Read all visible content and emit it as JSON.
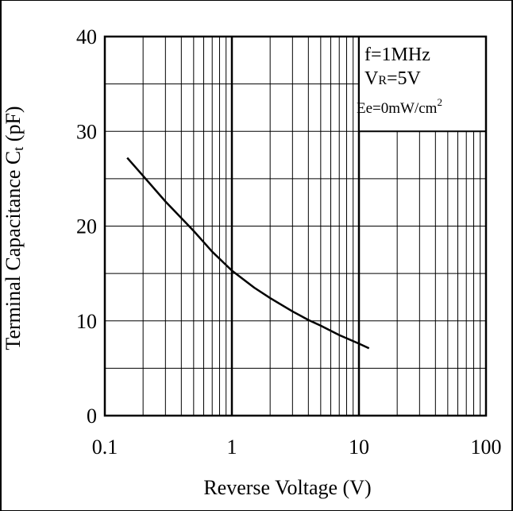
{
  "chart_data": {
    "type": "line",
    "xlabel": "Reverse Voltage (V)",
    "ylabel": "Terminal Capacitance C",
    "ylabel_sub": "t",
    "ylabel_unit": " (pF)",
    "x_scale": "log",
    "xlim": [
      0.1,
      100
    ],
    "ylim": [
      0,
      40
    ],
    "grid": true,
    "x_ticks": [
      0.1,
      1,
      10,
      100
    ],
    "x_tick_labels": [
      "0.1",
      "1",
      "10",
      "100"
    ],
    "y_ticks": [
      0,
      10,
      20,
      30,
      40
    ],
    "y_tick_labels": [
      "0",
      "10",
      "20",
      "30",
      "40"
    ],
    "annotations": {
      "freq": "f=1MHz",
      "freq_unit_z": "z",
      "vr_prefix": "V",
      "vr_sub": "R",
      "vr_value": "=5V",
      "ee_text": "Ee=0mW/cm",
      "ee_sup": "2"
    },
    "series": [
      {
        "x": [
          0.15,
          0.2,
          0.3,
          0.5,
          0.7,
          1.0,
          1.5,
          2.0,
          3.0,
          4.0,
          5.0,
          7.0,
          10.0,
          12.0
        ],
        "values": [
          27.2,
          25.3,
          22.6,
          19.5,
          17.3,
          15.3,
          13.5,
          12.4,
          11.0,
          10.1,
          9.5,
          8.5,
          7.6,
          7.1
        ]
      }
    ]
  }
}
